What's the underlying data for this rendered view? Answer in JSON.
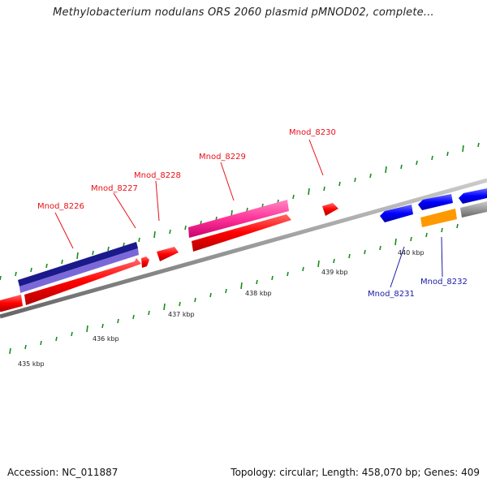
{
  "title": "Methylobacterium nodulans ORS 2060 plasmid pMNOD02, complete...",
  "footer": {
    "accession": "Accession: NC_011887",
    "stats": "Topology: circular; Length: 458,070 bp; Genes: 409"
  },
  "ticks": [
    "435 kbp",
    "436 kbp",
    "437 kbp",
    "438 kbp",
    "439 kbp",
    "440 kbp"
  ],
  "genes": {
    "mnod_8226": "Mnod_8226",
    "mnod_8227": "Mnod_8227",
    "mnod_8228": "Mnod_8228",
    "mnod_8229": "Mnod_8229",
    "mnod_8230": "Mnod_8230",
    "mnod_8231": "Mnod_8231",
    "mnod_8232": "Mnod_8232"
  },
  "colors": {
    "forward_gene": "#ff0000",
    "reverse_gene": "#0000ff",
    "navy_feature": "#1a1a8c",
    "violet_feature": "#7b68d8",
    "pink_feature": "#ff3399",
    "orange_feature": "#ff9900",
    "gray_feature": "#777777",
    "tick": "#1a8c1a",
    "backbone": "#888888"
  }
}
